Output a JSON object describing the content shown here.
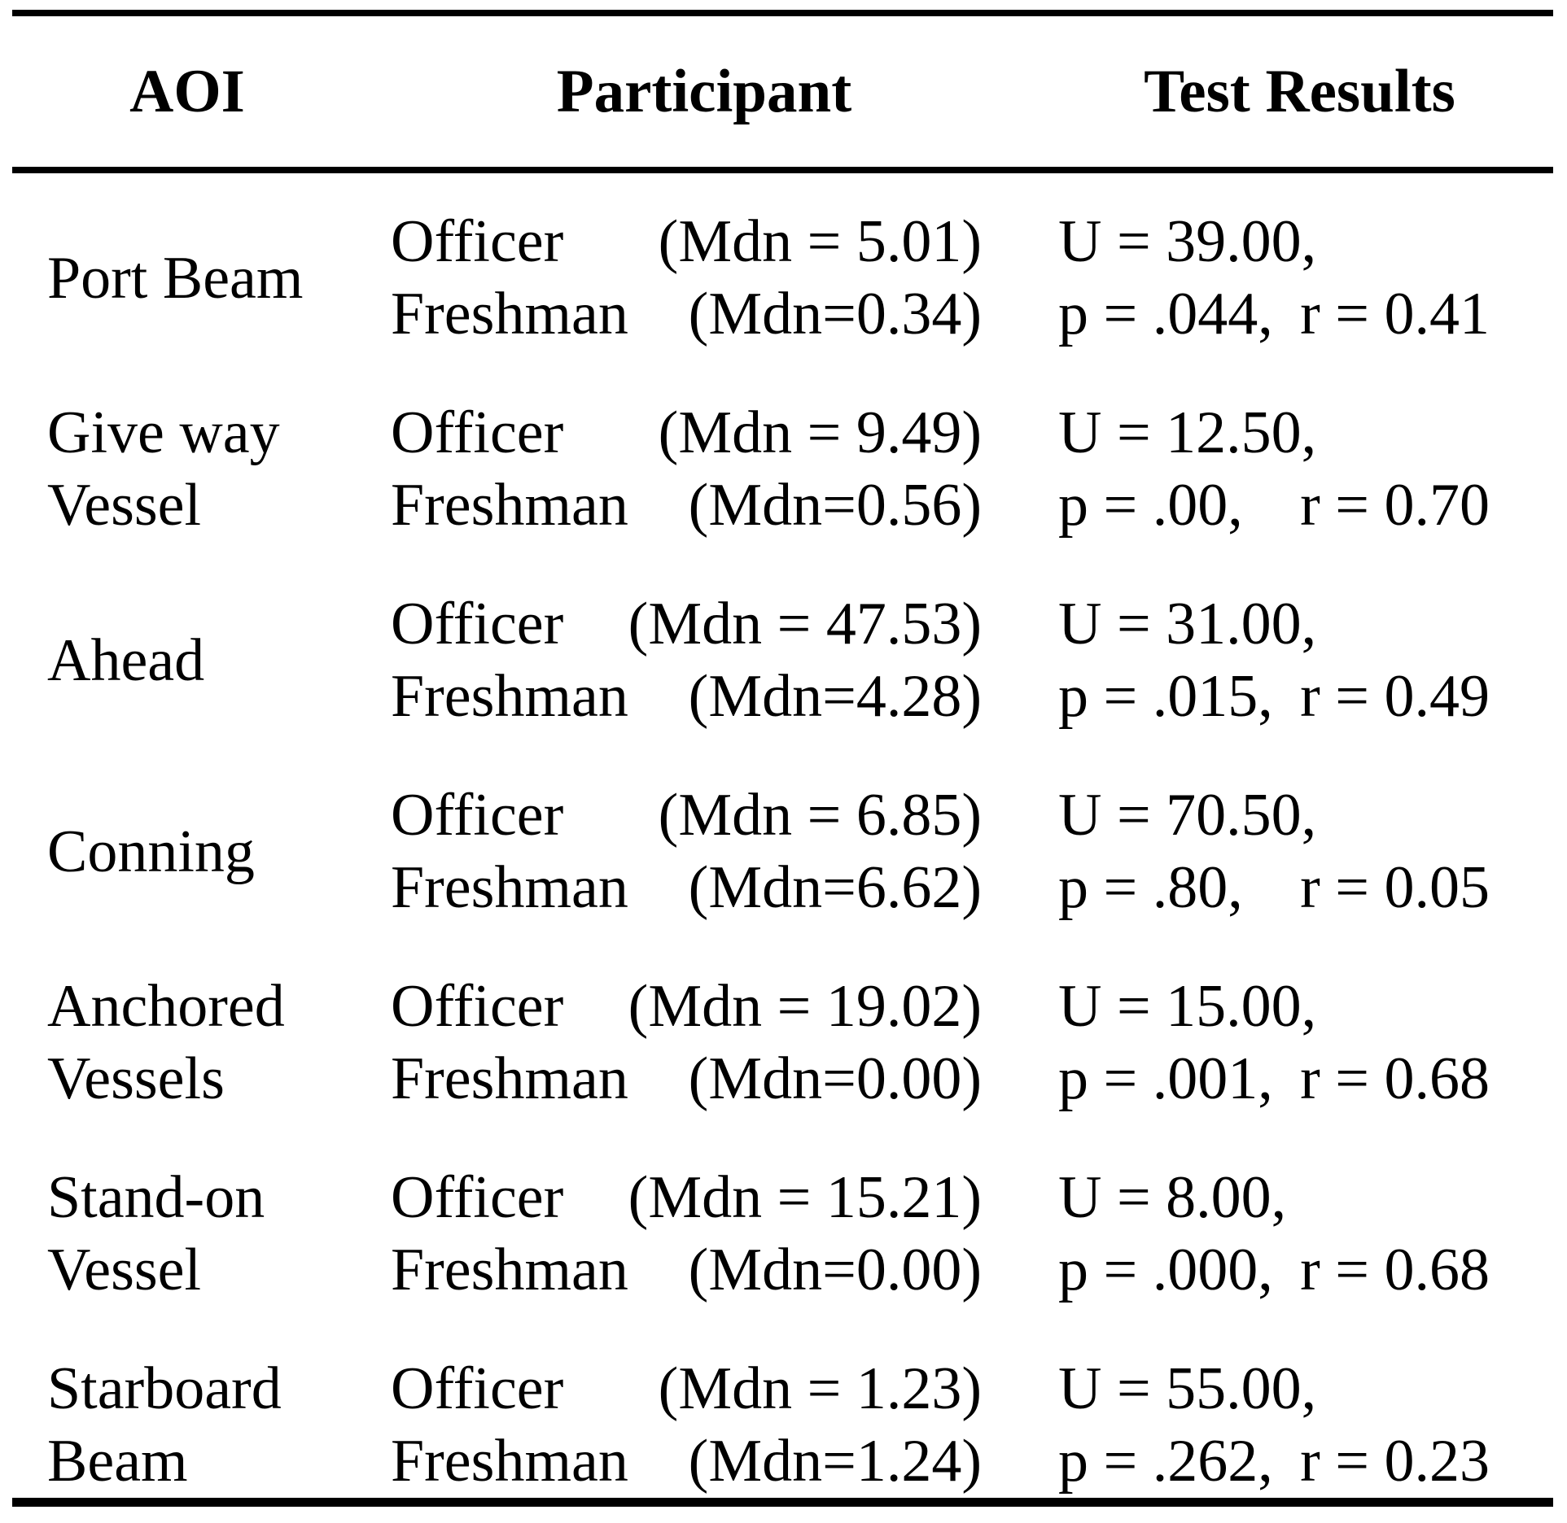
{
  "colors": {
    "text": "#000000",
    "background": "#ffffff",
    "rule": "#000000"
  },
  "table": {
    "headers": {
      "aoi": "AOI",
      "participant": "Participant",
      "results": "Test Results"
    },
    "rows": [
      {
        "aoi_line1": "Port Beam",
        "aoi_line2": "",
        "participants": [
          {
            "name": "Officer",
            "mdn": "(Mdn = 5.01)"
          },
          {
            "name": "Freshman",
            "mdn": "(Mdn=0.34)"
          }
        ],
        "results": {
          "u": "U = 39.00,",
          "p": "p = .044,",
          "r": "r = 0.41"
        }
      },
      {
        "aoi_line1": "Give way",
        "aoi_line2": "Vessel",
        "participants": [
          {
            "name": "Officer",
            "mdn": "(Mdn = 9.49)"
          },
          {
            "name": "Freshman",
            "mdn": "(Mdn=0.56)"
          }
        ],
        "results": {
          "u": "U = 12.50,",
          "p": "p = .00,",
          "r": "r = 0.70"
        }
      },
      {
        "aoi_line1": "Ahead",
        "aoi_line2": "",
        "participants": [
          {
            "name": "Officer",
            "mdn": "(Mdn = 47.53)"
          },
          {
            "name": "Freshman",
            "mdn": "(Mdn=4.28)"
          }
        ],
        "results": {
          "u": "U = 31.00,",
          "p": "p = .015,",
          "r": "r = 0.49"
        }
      },
      {
        "aoi_line1": "Conning",
        "aoi_line2": "",
        "participants": [
          {
            "name": "Officer",
            "mdn": "(Mdn = 6.85)"
          },
          {
            "name": "Freshman",
            "mdn": "(Mdn=6.62)"
          }
        ],
        "results": {
          "u": "U = 70.50,",
          "p": "p = .80,",
          "r": "r = 0.05"
        }
      },
      {
        "aoi_line1": "Anchored",
        "aoi_line2": "Vessels",
        "participants": [
          {
            "name": "Officer",
            "mdn": "(Mdn = 19.02)"
          },
          {
            "name": "Freshman",
            "mdn": "(Mdn=0.00)"
          }
        ],
        "results": {
          "u": "U = 15.00,",
          "p": "p = .001,",
          "r": "r = 0.68"
        }
      },
      {
        "aoi_line1": "Stand-on",
        "aoi_line2": "Vessel",
        "participants": [
          {
            "name": "Officer",
            "mdn": "(Mdn = 15.21)"
          },
          {
            "name": "Freshman",
            "mdn": "(Mdn=0.00)"
          }
        ],
        "results": {
          "u": "U = 8.00,",
          "p": "p = .000,",
          "r": "r = 0.68"
        }
      },
      {
        "aoi_line1": "Starboard",
        "aoi_line2": "Beam",
        "participants": [
          {
            "name": "Officer",
            "mdn": "(Mdn = 1.23)"
          },
          {
            "name": "Freshman",
            "mdn": "(Mdn=1.24)"
          }
        ],
        "results": {
          "u": "U = 55.00,",
          "p": "p = .262,",
          "r": "r = 0.23"
        }
      }
    ]
  }
}
